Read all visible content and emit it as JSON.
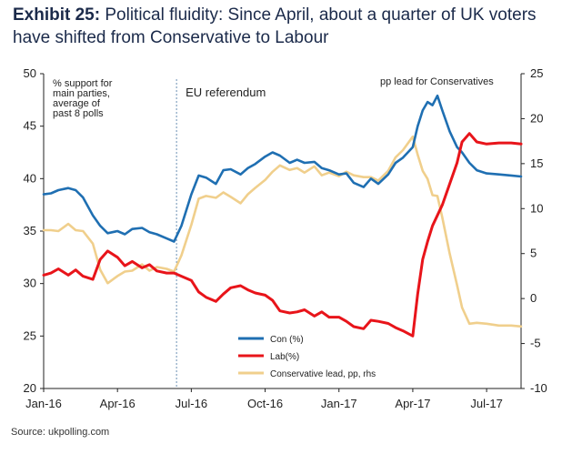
{
  "title": {
    "exhibit": "Exhibit 25:",
    "text": "Political fluidity: Since April, about a quarter of UK voters have shifted from Conservative to Labour"
  },
  "source": "Source: ukpolling.com",
  "colors": {
    "con": "#1f6fb2",
    "lab": "#e8141a",
    "lead": "#f0cf8c",
    "vline": "#6b8fb3"
  },
  "chart_data": {
    "type": "line",
    "title": "Political fluidity: Since April, about a quarter of UK voters have shifted from Conservative to Labour",
    "x_ticks": [
      "Jan-16",
      "Apr-16",
      "Jul-16",
      "Oct-16",
      "Jan-17",
      "Apr-17",
      "Jul-17"
    ],
    "x_tick_months": [
      0,
      3,
      6,
      9,
      12,
      15,
      18
    ],
    "xlim": [
      0,
      19.4
    ],
    "ylim_left": [
      20,
      50
    ],
    "yticks_left": [
      20,
      25,
      30,
      35,
      40,
      45,
      50
    ],
    "ylim_right": [
      -10,
      25
    ],
    "yticks_right": [
      -10,
      -5,
      0,
      5,
      10,
      15,
      20,
      25
    ],
    "left_axis_annotation": [
      "% support for",
      "main parties,",
      "average of",
      "past 8 polls"
    ],
    "right_axis_annotation": "pp lead for Conservatives",
    "event": {
      "label": "EU referendum",
      "x": 5.4
    },
    "series": [
      {
        "name": "Con (%)",
        "axis": "left",
        "x": [
          0,
          0.3,
          0.6,
          1,
          1.3,
          1.6,
          2,
          2.3,
          2.6,
          3,
          3.3,
          3.6,
          4,
          4.3,
          4.6,
          5,
          5.3,
          5.6,
          6,
          6.3,
          6.6,
          7,
          7.3,
          7.6,
          8,
          8.3,
          8.6,
          9,
          9.3,
          9.6,
          10,
          10.3,
          10.6,
          11,
          11.3,
          11.6,
          12,
          12.3,
          12.6,
          13,
          13.3,
          13.6,
          14,
          14.3,
          14.6,
          15,
          15.2,
          15.4,
          15.6,
          15.8,
          16,
          16.2,
          16.5,
          16.8,
          17,
          17.3,
          17.6,
          18,
          18.5,
          19,
          19.4
        ],
        "values": [
          38.5,
          38.6,
          38.9,
          39.1,
          38.9,
          38.2,
          36.5,
          35.5,
          34.8,
          35.0,
          34.7,
          35.2,
          35.3,
          34.9,
          34.7,
          34.3,
          34.0,
          35.5,
          38.5,
          40.3,
          40.1,
          39.5,
          40.8,
          40.9,
          40.4,
          41.0,
          41.4,
          42.1,
          42.5,
          42.2,
          41.5,
          41.8,
          41.5,
          41.6,
          41.0,
          40.8,
          40.4,
          40.5,
          39.6,
          39.2,
          40.0,
          39.5,
          40.4,
          41.5,
          42.0,
          43.0,
          45.0,
          46.5,
          47.3,
          47.0,
          47.9,
          46.5,
          44.5,
          43.0,
          42.5,
          41.5,
          40.8,
          40.5,
          40.4,
          40.3,
          40.2
        ]
      },
      {
        "name": "Lab(%)",
        "axis": "left",
        "x": [
          0,
          0.3,
          0.6,
          1,
          1.3,
          1.6,
          2,
          2.3,
          2.6,
          3,
          3.3,
          3.6,
          4,
          4.3,
          4.6,
          5,
          5.3,
          5.6,
          6,
          6.3,
          6.6,
          7,
          7.3,
          7.6,
          8,
          8.3,
          8.6,
          9,
          9.3,
          9.6,
          10,
          10.3,
          10.6,
          11,
          11.3,
          11.6,
          12,
          12.3,
          12.6,
          13,
          13.3,
          13.6,
          14,
          14.3,
          14.6,
          15,
          15.2,
          15.4,
          15.6,
          15.8,
          16,
          16.2,
          16.5,
          16.8,
          17,
          17.3,
          17.6,
          18,
          18.5,
          19,
          19.4
        ],
        "values": [
          30.8,
          31.0,
          31.4,
          30.8,
          31.3,
          30.7,
          30.4,
          32.3,
          33.1,
          32.5,
          31.7,
          32.1,
          31.5,
          31.8,
          31.2,
          31.0,
          31.0,
          30.7,
          30.3,
          29.2,
          28.7,
          28.3,
          29.0,
          29.6,
          29.8,
          29.4,
          29.1,
          28.9,
          28.4,
          27.4,
          27.2,
          27.3,
          27.5,
          26.9,
          27.3,
          26.8,
          26.8,
          26.4,
          25.9,
          25.7,
          26.5,
          26.4,
          26.2,
          25.8,
          25.5,
          25.0,
          29.0,
          32.3,
          34.0,
          35.5,
          36.5,
          37.5,
          39.5,
          41.5,
          43.5,
          44.3,
          43.5,
          43.3,
          43.4,
          43.4,
          43.3
        ]
      },
      {
        "name": "Conservative lead, pp,  rhs",
        "axis": "right",
        "x": [
          0,
          0.3,
          0.6,
          1,
          1.3,
          1.6,
          2,
          2.3,
          2.6,
          3,
          3.3,
          3.6,
          4,
          4.3,
          4.6,
          5,
          5.3,
          5.6,
          6,
          6.3,
          6.6,
          7,
          7.3,
          7.6,
          8,
          8.3,
          8.6,
          9,
          9.3,
          9.6,
          10,
          10.3,
          10.6,
          11,
          11.3,
          11.6,
          12,
          12.3,
          12.6,
          13,
          13.3,
          13.6,
          14,
          14.3,
          14.6,
          15,
          15.2,
          15.4,
          15.6,
          15.8,
          16,
          16.2,
          16.5,
          16.8,
          17,
          17.3,
          17.6,
          18,
          18.5,
          19,
          19.4
        ],
        "values": [
          7.6,
          7.6,
          7.5,
          8.3,
          7.6,
          7.5,
          6.1,
          3.2,
          1.7,
          2.5,
          3.0,
          3.1,
          3.8,
          3.1,
          3.5,
          3.3,
          3.0,
          4.8,
          8.2,
          11.1,
          11.4,
          11.2,
          11.8,
          11.3,
          10.6,
          11.6,
          12.3,
          13.2,
          14.1,
          14.8,
          14.3,
          14.5,
          14.0,
          14.7,
          13.7,
          14.0,
          13.6,
          14.1,
          13.7,
          13.5,
          13.5,
          13.1,
          14.2,
          15.7,
          16.5,
          18.0,
          16.0,
          14.2,
          13.3,
          11.5,
          11.4,
          9.0,
          5.0,
          1.5,
          -1.0,
          -2.8,
          -2.7,
          -2.8,
          -3.0,
          -3.0,
          -3.1
        ]
      }
    ],
    "legend": [
      "Con (%)",
      "Lab(%)",
      "Conservative lead, pp,  rhs"
    ]
  }
}
